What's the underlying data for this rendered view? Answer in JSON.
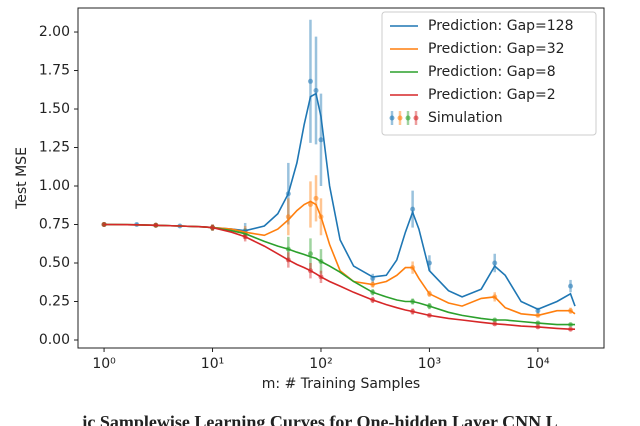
{
  "chart_data": {
    "type": "line",
    "xlabel": "m: # Training Samples",
    "ylabel": "Test MSE",
    "caption": "ic Samplewise Learning Curves for One-hidden Layer CNN L",
    "log_x": true,
    "grid": false,
    "legend": "upper right",
    "xlim": [
      0.575,
      40700
    ],
    "ylim": [
      -0.052,
      2.156
    ],
    "xticks": [
      {
        "value": 1,
        "label": "10⁰"
      },
      {
        "value": 10,
        "label": "10¹"
      },
      {
        "value": 100,
        "label": "10²"
      },
      {
        "value": 1000,
        "label": "10³"
      },
      {
        "value": 10000,
        "label": "10⁴"
      }
    ],
    "yticks": [
      {
        "value": 0,
        "label": "0.00"
      },
      {
        "value": 0.25,
        "label": "0.25"
      },
      {
        "value": 0.5,
        "label": "0.50"
      },
      {
        "value": 0.75,
        "label": "0.75"
      },
      {
        "value": 1,
        "label": "1.00"
      },
      {
        "value": 1.25,
        "label": "1.25"
      },
      {
        "value": 1.5,
        "label": "1.50"
      },
      {
        "value": 1.75,
        "label": "1.75"
      },
      {
        "value": 2,
        "label": "2.00"
      }
    ],
    "x": [
      1,
      2,
      3,
      5,
      8,
      10,
      15,
      20,
      30,
      40,
      50,
      60,
      70,
      80,
      90,
      100,
      120,
      150,
      200,
      300,
      400,
      500,
      600,
      700,
      800,
      1000,
      1500,
      2000,
      3000,
      4000,
      5000,
      7000,
      10000,
      15000,
      20000,
      22000
    ],
    "series": [
      {
        "name": "Prediction: Gap=128",
        "color": "#1f77b4",
        "values": [
          0.75,
          0.748,
          0.745,
          0.74,
          0.735,
          0.73,
          0.72,
          0.71,
          0.74,
          0.82,
          0.95,
          1.15,
          1.4,
          1.58,
          1.6,
          1.45,
          1.0,
          0.65,
          0.48,
          0.41,
          0.42,
          0.52,
          0.7,
          0.83,
          0.72,
          0.45,
          0.32,
          0.28,
          0.33,
          0.48,
          0.42,
          0.25,
          0.2,
          0.25,
          0.3,
          0.22
        ]
      },
      {
        "name": "Prediction: Gap=32",
        "color": "#ff7f0e",
        "values": [
          0.75,
          0.748,
          0.745,
          0.74,
          0.735,
          0.73,
          0.72,
          0.7,
          0.68,
          0.72,
          0.78,
          0.84,
          0.88,
          0.9,
          0.88,
          0.8,
          0.62,
          0.45,
          0.38,
          0.36,
          0.38,
          0.42,
          0.47,
          0.47,
          0.4,
          0.3,
          0.24,
          0.22,
          0.27,
          0.28,
          0.21,
          0.17,
          0.16,
          0.19,
          0.19,
          0.17
        ]
      },
      {
        "name": "Prediction: Gap=8",
        "color": "#2ca02c",
        "values": [
          0.75,
          0.748,
          0.745,
          0.74,
          0.735,
          0.73,
          0.71,
          0.69,
          0.64,
          0.61,
          0.59,
          0.57,
          0.555,
          0.54,
          0.53,
          0.51,
          0.48,
          0.44,
          0.38,
          0.31,
          0.28,
          0.26,
          0.25,
          0.25,
          0.24,
          0.22,
          0.18,
          0.16,
          0.14,
          0.13,
          0.13,
          0.12,
          0.11,
          0.1,
          0.1,
          0.1
        ]
      },
      {
        "name": "Prediction: Gap=2",
        "color": "#d62728",
        "values": [
          0.75,
          0.748,
          0.745,
          0.74,
          0.735,
          0.73,
          0.7,
          0.67,
          0.61,
          0.56,
          0.52,
          0.49,
          0.47,
          0.45,
          0.43,
          0.41,
          0.38,
          0.35,
          0.31,
          0.26,
          0.23,
          0.21,
          0.195,
          0.185,
          0.175,
          0.16,
          0.14,
          0.13,
          0.115,
          0.105,
          0.1,
          0.09,
          0.085,
          0.075,
          0.07,
          0.07
        ]
      }
    ],
    "simulation": {
      "name": "Simulation",
      "sets": [
        {
          "color": "#1f77b4",
          "x": [
            1,
            2,
            3,
            5,
            10,
            20,
            50,
            80,
            90,
            100,
            300,
            700,
            1000,
            4000,
            10000,
            20000
          ],
          "values": [
            0.75,
            0.75,
            0.745,
            0.74,
            0.73,
            0.71,
            0.95,
            1.68,
            1.62,
            1.3,
            0.4,
            0.85,
            0.5,
            0.5,
            0.19,
            0.35
          ],
          "errors": [
            0.01,
            0.01,
            0.01,
            0.01,
            0.02,
            0.05,
            0.2,
            0.4,
            0.35,
            0.3,
            0.03,
            0.12,
            0.05,
            0.06,
            0.02,
            0.04
          ]
        },
        {
          "color": "#ff7f0e",
          "x": [
            1,
            3,
            10,
            20,
            50,
            80,
            90,
            100,
            300,
            700,
            1000,
            4000,
            10000,
            20000
          ],
          "values": [
            0.75,
            0.745,
            0.73,
            0.7,
            0.8,
            0.88,
            0.92,
            0.8,
            0.36,
            0.47,
            0.3,
            0.28,
            0.16,
            0.19
          ],
          "errors": [
            0.01,
            0.01,
            0.02,
            0.04,
            0.12,
            0.15,
            0.15,
            0.12,
            0.02,
            0.04,
            0.02,
            0.03,
            0.01,
            0.02
          ]
        },
        {
          "color": "#2ca02c",
          "x": [
            1,
            3,
            10,
            20,
            50,
            80,
            100,
            300,
            700,
            1000,
            4000,
            10000,
            20000
          ],
          "values": [
            0.75,
            0.745,
            0.73,
            0.69,
            0.59,
            0.56,
            0.51,
            0.31,
            0.25,
            0.22,
            0.13,
            0.11,
            0.1
          ],
          "errors": [
            0.01,
            0.01,
            0.02,
            0.03,
            0.08,
            0.1,
            0.08,
            0.02,
            0.02,
            0.02,
            0.01,
            0.01,
            0.01
          ]
        },
        {
          "color": "#d62728",
          "x": [
            1,
            3,
            10,
            20,
            50,
            80,
            100,
            300,
            700,
            1000,
            4000,
            10000,
            20000
          ],
          "values": [
            0.75,
            0.745,
            0.73,
            0.67,
            0.52,
            0.45,
            0.41,
            0.26,
            0.185,
            0.16,
            0.105,
            0.085,
            0.07
          ],
          "errors": [
            0.01,
            0.01,
            0.02,
            0.03,
            0.05,
            0.05,
            0.04,
            0.02,
            0.02,
            0.01,
            0.01,
            0.01,
            0.01
          ]
        }
      ]
    }
  }
}
